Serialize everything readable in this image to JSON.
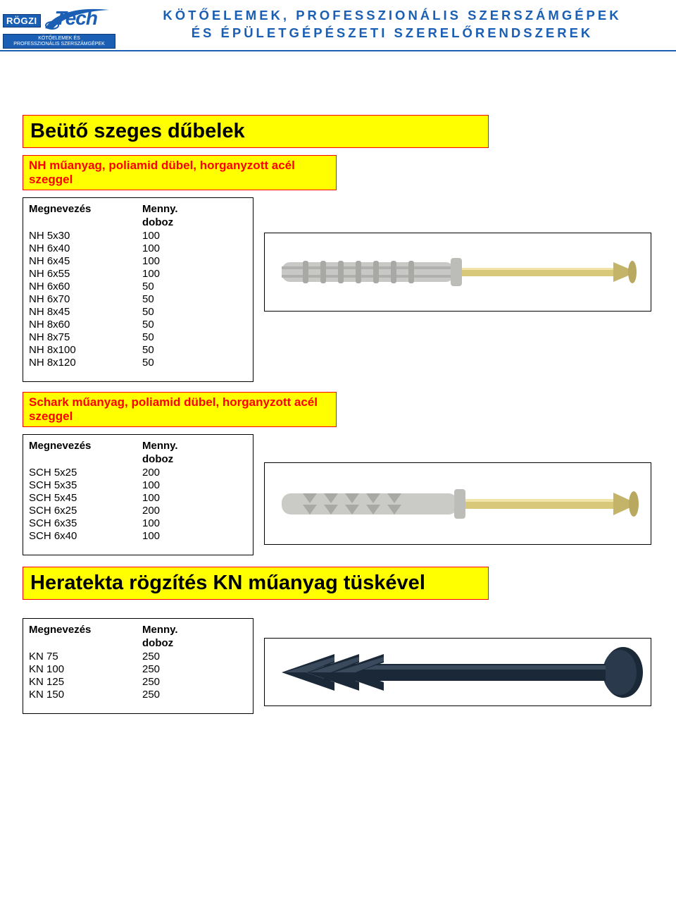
{
  "header": {
    "logo_badge": "RÖGZI",
    "logo_tech": "Tech",
    "logo_sub1": "KÖTŐELEMEK ÉS",
    "logo_sub2": "PROFESSZIONÁLIS SZERSZÁMGÉPEK",
    "line1": "KÖTŐELEMEK, PROFESSZIONÁLIS SZERSZÁMGÉPEK",
    "line2": "ÉS ÉPÜLETGÉPÉSZETI SZERELŐRENDSZEREK"
  },
  "colors": {
    "brand_blue": "#1a5fb4",
    "yellow": "#ffff00",
    "red": "#ff0000",
    "black": "#000000"
  },
  "section1": {
    "title": "Beütő szeges dűbelek",
    "subtitle": "NH műanyag, poliamid dübel, horganyzott acél szeggel",
    "col_name": "Megnevezés",
    "col_val_1": "Menny.",
    "col_val_2": "doboz",
    "rows": [
      {
        "name": "NH 5x30",
        "val": "100"
      },
      {
        "name": "NH 6x40",
        "val": "100"
      },
      {
        "name": "NH 6x45",
        "val": "100"
      },
      {
        "name": "NH 6x55",
        "val": "100"
      },
      {
        "name": "NH 6x60",
        "val": "50"
      },
      {
        "name": "NH 6x70",
        "val": "50"
      },
      {
        "name": "NH 8x45",
        "val": "50"
      },
      {
        "name": "NH 8x60",
        "val": "50"
      },
      {
        "name": "NH 8x75",
        "val": "50"
      },
      {
        "name": "NH 8x100",
        "val": "50"
      },
      {
        "name": "NH 8x120",
        "val": "50"
      }
    ]
  },
  "section2": {
    "subtitle": "Schark műanyag, poliamid dübel, horganyzott acél szeggel",
    "col_name": "Megnevezés",
    "col_val_1": "Menny.",
    "col_val_2": "doboz",
    "rows": [
      {
        "name": "SCH 5x25",
        "val": "200"
      },
      {
        "name": "SCH 5x35",
        "val": "100"
      },
      {
        "name": "SCH 5x45",
        "val": "100"
      },
      {
        "name": "SCH 6x25",
        "val": "200"
      },
      {
        "name": "SCH 6x35",
        "val": "100"
      },
      {
        "name": "SCH 6x40",
        "val": "100"
      }
    ]
  },
  "section3": {
    "title": "Heratekta rögzítés KN műanyag tüskével",
    "col_name": "Megnevezés",
    "col_val_1": "Menny.",
    "col_val_2": "doboz",
    "rows": [
      {
        "name": "KN 75",
        "val": "250"
      },
      {
        "name": "KN 100",
        "val": "250"
      },
      {
        "name": "KN 125",
        "val": "250"
      },
      {
        "name": "KN 150",
        "val": "250"
      }
    ]
  }
}
